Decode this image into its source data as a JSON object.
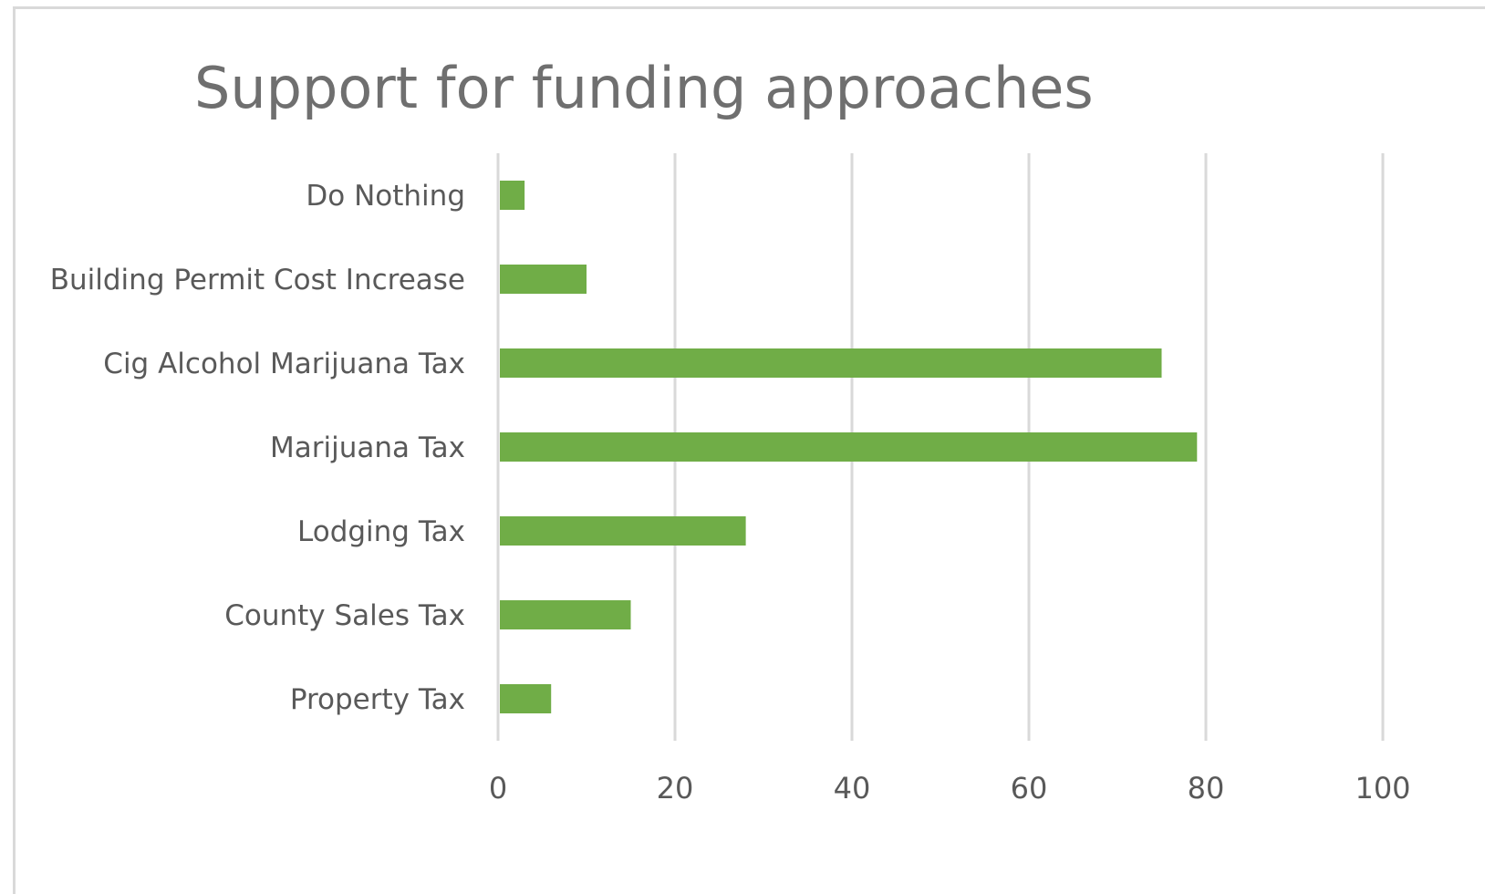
{
  "chart_data": {
    "type": "bar",
    "orientation": "horizontal",
    "title": "Support for funding approaches",
    "categories": [
      "Do Nothing",
      "Building Permit Cost Increase",
      "Cig Alcohol Marijuana Tax",
      "Marijuana Tax",
      "Lodging Tax",
      "County Sales Tax",
      "Property Tax"
    ],
    "values": [
      3,
      10,
      75,
      79,
      28,
      15,
      6
    ],
    "xlim": [
      0,
      100
    ],
    "xticks": [
      "0",
      "20",
      "40",
      "60",
      "80",
      "100"
    ],
    "grid": "vertical",
    "legend": "none",
    "bar_color": "#70AD47",
    "gridline_color": "#D9D9D9",
    "text_color": "#595959",
    "title_color": "#6F6F6F"
  }
}
